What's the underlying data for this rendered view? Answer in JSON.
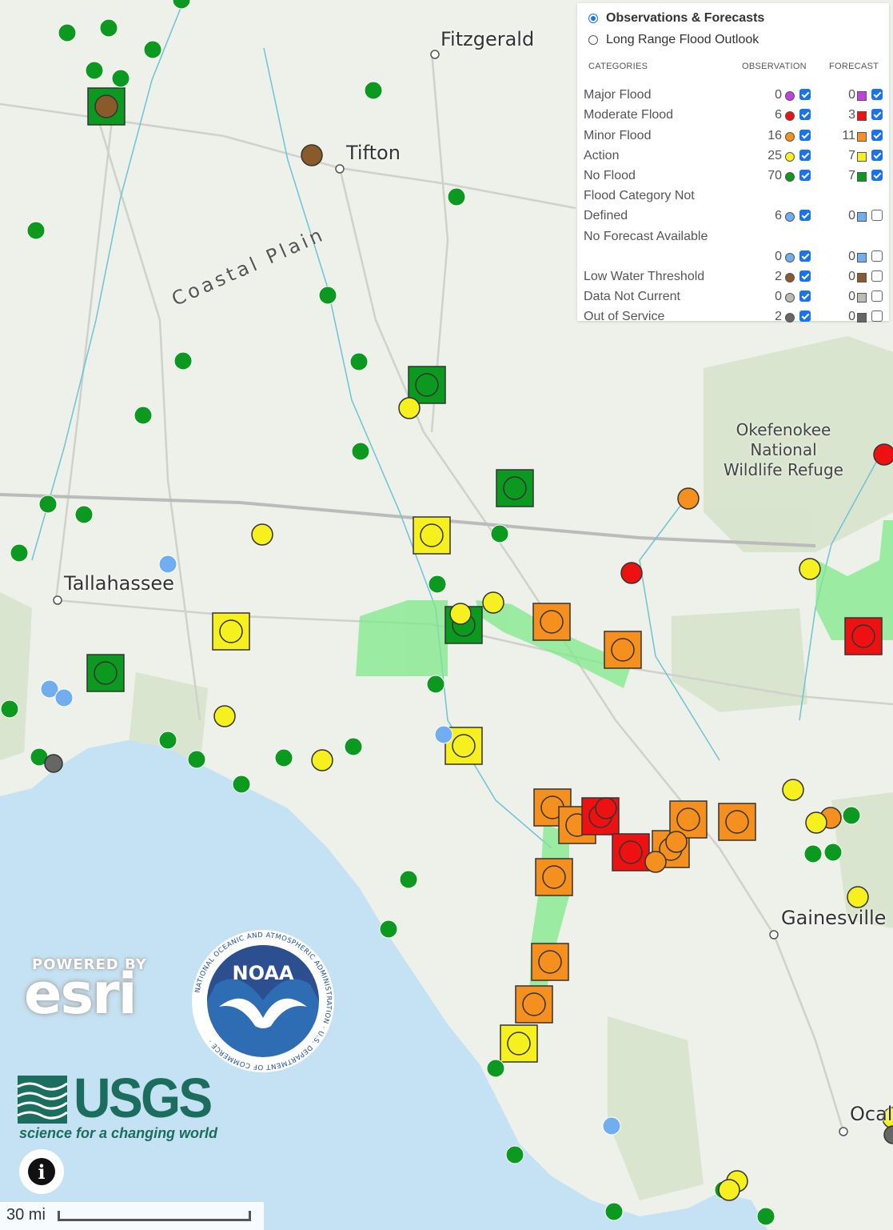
{
  "map": {
    "places": [
      {
        "name": "Fitzgerald"
      },
      {
        "name": "Tifton"
      },
      {
        "name": "Tallahassee"
      },
      {
        "name": "Gainesville"
      },
      {
        "name": "Ocal"
      }
    ],
    "region_label": "Coastal Plain",
    "refuge_label": [
      "Okefenokee",
      "National",
      "Wildlife Refuge"
    ],
    "scale_label": "30 mi"
  },
  "legend": {
    "mode_options": [
      {
        "label": "Observations & Forecasts",
        "selected": true
      },
      {
        "label": "Long Range Flood Outlook",
        "selected": false
      }
    ],
    "headers": {
      "categories": "CATEGORIES",
      "observation": "OBSERVATION",
      "forecast": "FORECAST"
    },
    "rows": [
      {
        "label": "Major Flood",
        "obs_count": "0",
        "obs_color": "#c040e0",
        "obs_checked": true,
        "fc_count": "0",
        "fc_color": "#c040e0",
        "fc_checked": true
      },
      {
        "label": "Moderate Flood",
        "obs_count": "6",
        "obs_color": "#ee1111",
        "obs_checked": true,
        "fc_count": "3",
        "fc_color": "#ee1111",
        "fc_checked": true
      },
      {
        "label": "Minor Flood",
        "obs_count": "16",
        "obs_color": "#f5901e",
        "obs_checked": true,
        "fc_count": "11",
        "fc_color": "#f5901e",
        "fc_checked": true
      },
      {
        "label": "Action",
        "obs_count": "25",
        "obs_color": "#f5f01e",
        "obs_checked": true,
        "fc_count": "7",
        "fc_color": "#f5f01e",
        "fc_checked": true
      },
      {
        "label": "No Flood",
        "obs_count": "70",
        "obs_color": "#0b9a1f",
        "obs_checked": true,
        "fc_count": "7",
        "fc_color": "#0b9a1f",
        "fc_checked": true
      },
      {
        "label": "Flood Category Not Defined",
        "obs_count": "6",
        "obs_color": "#70aef0",
        "obs_checked": true,
        "fc_count": "0",
        "fc_color": "#70aef0",
        "fc_checked": false
      },
      {
        "label": "No Forecast Available",
        "obs_count": "0",
        "obs_color": "#70aef0",
        "obs_checked": true,
        "fc_count": "0",
        "fc_color": "#70aef0",
        "fc_checked": false
      },
      {
        "label": "Low Water Threshold",
        "obs_count": "2",
        "obs_color": "#8b5a2b",
        "obs_checked": true,
        "fc_count": "0",
        "fc_color": "#8b5a2b",
        "fc_checked": false
      },
      {
        "label": "Data Not Current",
        "obs_count": "0",
        "obs_color": "#b8bcb4",
        "obs_checked": true,
        "fc_count": "0",
        "fc_color": "#b8bcb4",
        "fc_checked": false
      },
      {
        "label": "Out of Service",
        "obs_count": "2",
        "obs_color": "#666666",
        "obs_checked": true,
        "fc_count": "0",
        "fc_color": "#666666",
        "fc_checked": false
      }
    ]
  },
  "logos": {
    "esri_powered": "POWERED BY",
    "esri_word": "esri",
    "noaa_word": "NOAA",
    "noaa_ring": "NATIONAL OCEANIC AND ATMOSPHERIC ADMINISTRATION · U.S. DEPARTMENT OF COMMERCE ·",
    "usgs_word": "USGS",
    "usgs_tagline": "science for a changing world"
  },
  "info_button": "i"
}
